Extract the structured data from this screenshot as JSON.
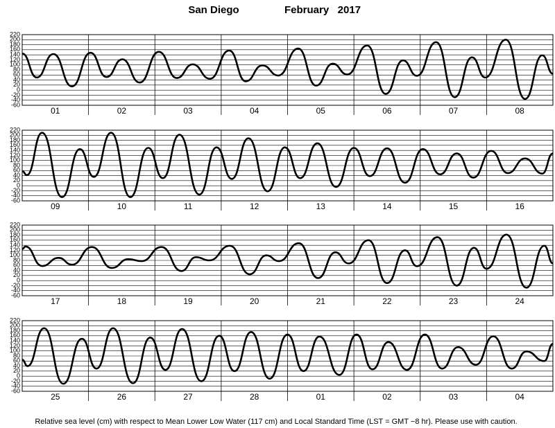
{
  "title": "San Diego",
  "period": "February   2017",
  "footer": "Relative sea level (cm) with respect to Mean Lower Low Water (117 cm) and Local Standard Time (LST = GMT −8 hr). Please use with caution.",
  "chart_data": [
    {
      "type": "line",
      "xlim": [
        0,
        8
      ],
      "ylim": [
        -60,
        220
      ],
      "yticks": [
        -60,
        -40,
        -20,
        0,
        20,
        40,
        60,
        80,
        100,
        120,
        140,
        160,
        180,
        200,
        220
      ],
      "xticks": [
        {
          "value": 0.5,
          "label": "01"
        },
        {
          "value": 1.5,
          "label": "02"
        },
        {
          "value": 2.5,
          "label": "03"
        },
        {
          "value": 3.5,
          "label": "04"
        },
        {
          "value": 4.5,
          "label": "05"
        },
        {
          "value": 5.5,
          "label": "06"
        },
        {
          "value": 6.5,
          "label": "07"
        },
        {
          "value": 7.5,
          "label": "08"
        }
      ],
      "grid": true,
      "color": "#000000",
      "x": [
        0,
        0.22,
        0.47,
        0.75,
        1.03,
        1.27,
        1.51,
        1.77,
        2.06,
        2.33,
        2.57,
        2.83,
        3.12,
        3.37,
        3.62,
        3.86,
        4.16,
        4.43,
        4.68,
        4.9,
        5.2,
        5.48,
        5.74,
        5.95,
        6.24,
        6.52,
        6.78,
        6.98,
        7.29,
        7.58,
        7.84,
        8
      ],
      "values": [
        145,
        50,
        143,
        15,
        148,
        52,
        122,
        30,
        152,
        48,
        102,
        45,
        157,
        35,
        98,
        58,
        165,
        18,
        105,
        62,
        177,
        -15,
        118,
        57,
        190,
        -28,
        130,
        50,
        200,
        -35,
        138,
        65
      ]
    },
    {
      "type": "line",
      "xlim": [
        0,
        8
      ],
      "ylim": [
        -60,
        220
      ],
      "yticks": [
        -60,
        -40,
        -20,
        0,
        20,
        40,
        60,
        80,
        100,
        120,
        140,
        160,
        180,
        200,
        220
      ],
      "xticks": [
        {
          "value": 0.5,
          "label": "09"
        },
        {
          "value": 1.5,
          "label": "10"
        },
        {
          "value": 2.5,
          "label": "11"
        },
        {
          "value": 3.5,
          "label": "12"
        },
        {
          "value": 4.5,
          "label": "13"
        },
        {
          "value": 5.5,
          "label": "14"
        },
        {
          "value": 6.5,
          "label": "15"
        },
        {
          "value": 7.5,
          "label": "16"
        }
      ],
      "grid": true,
      "color": "#000000",
      "x": [
        0,
        0.07,
        0.3,
        0.6,
        0.87,
        1.08,
        1.34,
        1.63,
        1.9,
        2.12,
        2.37,
        2.67,
        2.93,
        3.16,
        3.41,
        3.7,
        3.96,
        4.19,
        4.45,
        4.73,
        5.0,
        5.24,
        5.5,
        5.77,
        6.04,
        6.3,
        6.55,
        6.8,
        7.07,
        7.32,
        7.58,
        7.84,
        8
      ],
      "values": [
        58,
        42,
        210,
        -45,
        145,
        35,
        210,
        -45,
        150,
        30,
        202,
        -35,
        152,
        27,
        188,
        -22,
        152,
        30,
        168,
        -5,
        150,
        38,
        148,
        12,
        145,
        45,
        128,
        32,
        138,
        50,
        108,
        48,
        128
      ]
    },
    {
      "type": "line",
      "xlim": [
        0,
        8
      ],
      "ylim": [
        -60,
        220
      ],
      "yticks": [
        -60,
        -40,
        -20,
        0,
        20,
        40,
        60,
        80,
        100,
        120,
        140,
        160,
        180,
        200,
        220
      ],
      "xticks": [
        {
          "value": 0.5,
          "label": "17"
        },
        {
          "value": 1.5,
          "label": "18"
        },
        {
          "value": 2.5,
          "label": "19"
        },
        {
          "value": 3.5,
          "label": "20"
        },
        {
          "value": 4.5,
          "label": "21"
        },
        {
          "value": 5.5,
          "label": "22"
        },
        {
          "value": 6.5,
          "label": "23"
        },
        {
          "value": 7.5,
          "label": "24"
        }
      ],
      "grid": true,
      "color": "#000000",
      "x": [
        0,
        0.05,
        0.3,
        0.55,
        0.75,
        1.05,
        1.35,
        1.6,
        1.8,
        2.1,
        2.4,
        2.62,
        2.82,
        3.13,
        3.43,
        3.68,
        3.87,
        4.17,
        4.46,
        4.72,
        4.92,
        5.22,
        5.5,
        5.77,
        5.95,
        6.26,
        6.55,
        6.81,
        7.0,
        7.3,
        7.6,
        7.87,
        8
      ],
      "values": [
        125,
        135,
        58,
        90,
        63,
        133,
        50,
        85,
        77,
        133,
        38,
        93,
        80,
        138,
        25,
        100,
        77,
        148,
        10,
        112,
        68,
        160,
        -10,
        120,
        57,
        172,
        -20,
        130,
        47,
        182,
        -28,
        138,
        68
      ]
    },
    {
      "type": "line",
      "xlim": [
        0,
        8
      ],
      "ylim": [
        -60,
        220
      ],
      "yticks": [
        -60,
        -40,
        -20,
        0,
        20,
        40,
        60,
        80,
        100,
        120,
        140,
        160,
        180,
        200,
        220
      ],
      "xticks": [
        {
          "value": 0.5,
          "label": "25"
        },
        {
          "value": 1.5,
          "label": "26"
        },
        {
          "value": 2.5,
          "label": "27"
        },
        {
          "value": 3.5,
          "label": "28"
        },
        {
          "value": 4.5,
          "label": "01"
        },
        {
          "value": 5.5,
          "label": "02"
        },
        {
          "value": 6.5,
          "label": "03"
        },
        {
          "value": 7.5,
          "label": "04"
        }
      ],
      "grid": true,
      "color": "#000000",
      "x": [
        0,
        0.08,
        0.33,
        0.62,
        0.9,
        1.12,
        1.37,
        1.67,
        1.93,
        2.16,
        2.41,
        2.7,
        2.97,
        3.2,
        3.45,
        3.73,
        4.0,
        4.24,
        4.48,
        4.78,
        5.04,
        5.28,
        5.52,
        5.8,
        6.07,
        6.33,
        6.57,
        6.84,
        7.1,
        7.38,
        7.6,
        7.87,
        8
      ],
      "values": [
        65,
        40,
        190,
        -30,
        148,
        30,
        190,
        -28,
        153,
        25,
        187,
        -20,
        160,
        20,
        175,
        -10,
        165,
        20,
        157,
        5,
        165,
        27,
        135,
        25,
        165,
        30,
        115,
        45,
        158,
        30,
        98,
        60,
        128
      ]
    }
  ]
}
